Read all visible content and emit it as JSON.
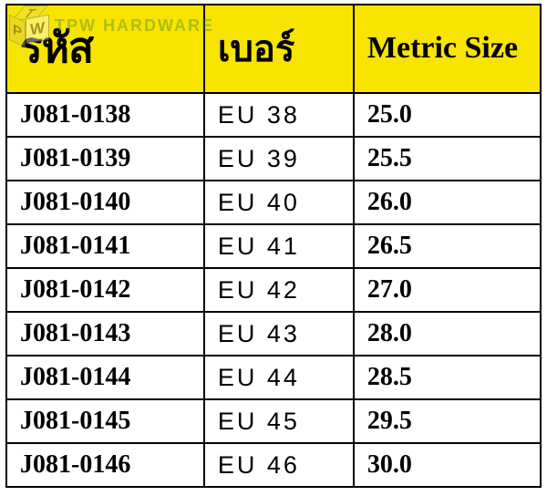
{
  "watermark": {
    "cube_letters": {
      "top": "T",
      "left": "P",
      "right": "W"
    },
    "brand_text": "TPW HARDWARE",
    "brand_color": "#4a8a2a"
  },
  "table": {
    "header_bg": "#f7e400",
    "columns": [
      {
        "label": "รหัส"
      },
      {
        "label": "เบอร์"
      },
      {
        "label": "Metric Size"
      }
    ],
    "rows": [
      {
        "code": "J081-0138",
        "size": "EU 38",
        "metric": "25.0"
      },
      {
        "code": "J081-0139",
        "size": "EU 39",
        "metric": "25.5"
      },
      {
        "code": "J081-0140",
        "size": "EU 40",
        "metric": "26.0"
      },
      {
        "code": "J081-0141",
        "size": "EU 41",
        "metric": "26.5"
      },
      {
        "code": "J081-0142",
        "size": "EU 42",
        "metric": "27.0"
      },
      {
        "code": "J081-0143",
        "size": "EU 43",
        "metric": "28.0"
      },
      {
        "code": "J081-0144",
        "size": "EU 44",
        "metric": "28.5"
      },
      {
        "code": "J081-0145",
        "size": "EU 45",
        "metric": "29.5"
      },
      {
        "code": "J081-0146",
        "size": "EU 46",
        "metric": "30.0"
      }
    ]
  }
}
